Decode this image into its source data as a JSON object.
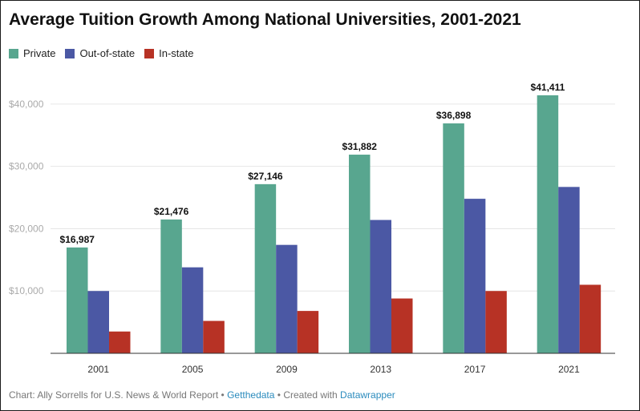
{
  "title": "Average Tuition Growth Among National Universities, 2001-2021",
  "footer": {
    "credit": "Chart: Ally Sorrells for U.S. News & World Report",
    "sep1": " • ",
    "source_link": "Getthedata",
    "sep2": " • Created with ",
    "tool_link": "Datawrapper"
  },
  "colors": {
    "private": "#58a68f",
    "out_of_state": "#4b58a4",
    "in_state": "#b73225",
    "grid": "#e6e6e6",
    "baseline": "#333333"
  },
  "chart_data": {
    "type": "bar",
    "title": "Average Tuition Growth Among National Universities, 2001-2021",
    "categories": [
      "2001",
      "2005",
      "2009",
      "2013",
      "2017",
      "2021"
    ],
    "series": [
      {
        "name": "Private",
        "color": "#58a68f",
        "values": [
          16987,
          21476,
          27146,
          31882,
          36898,
          41411
        ]
      },
      {
        "name": "Out-of-state",
        "color": "#4b58a4",
        "values": [
          10000,
          13800,
          17400,
          21400,
          24800,
          26700
        ]
      },
      {
        "name": "In-state",
        "color": "#b73225",
        "values": [
          3500,
          5200,
          6800,
          8800,
          10000,
          11000
        ]
      }
    ],
    "data_labels": {
      "series": "Private",
      "texts": [
        "$16,987",
        "$21,476",
        "$27,146",
        "$31,882",
        "$36,898",
        "$41,411"
      ]
    },
    "y_ticks": [
      10000,
      20000,
      30000,
      40000
    ],
    "y_tick_labels": [
      "$10,000",
      "$20,000",
      "$30,000",
      "$40,000"
    ],
    "ylim": [
      0,
      45000
    ],
    "xlabel": "",
    "ylabel": "",
    "grid": true,
    "legend": "top-left"
  }
}
